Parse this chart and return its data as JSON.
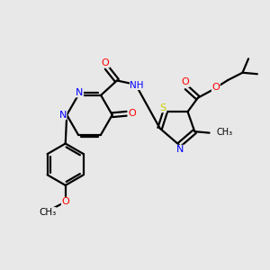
{
  "bg_color": "#e8e8e8",
  "bond_color": "#000000",
  "bond_width": 1.6,
  "N_color": "#0000ff",
  "O_color": "#ff0000",
  "S_color": "#cccc00",
  "C_color": "#000000",
  "figsize": [
    3.0,
    3.0
  ],
  "dpi": 100,
  "xlim": [
    0,
    10
  ],
  "ylim": [
    0,
    10
  ]
}
